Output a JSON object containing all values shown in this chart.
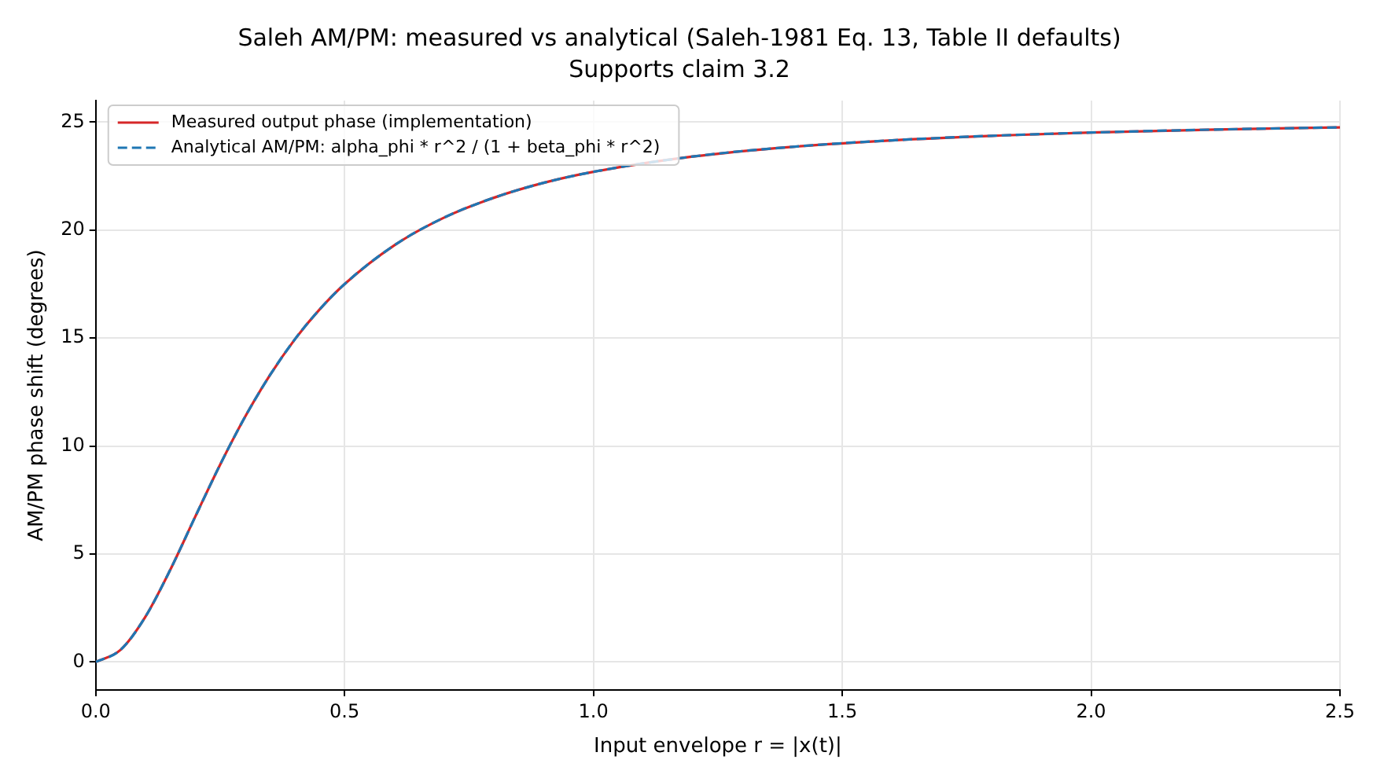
{
  "chart_data": {
    "type": "line",
    "title": "Saleh AM/PM: measured vs analytical (Saleh-1981 Eq. 13, Table II defaults)",
    "subtitle": "Supports claim 3.2",
    "xlabel": "Input envelope r = |x(t)|",
    "ylabel": "AM/PM phase shift (degrees)",
    "x": [
      0,
      0.05,
      0.1,
      0.15,
      0.2,
      0.25,
      0.3,
      0.35,
      0.4,
      0.45,
      0.5,
      0.6,
      0.7,
      0.8,
      0.9,
      1.0,
      1.2,
      1.4,
      1.6,
      1.8,
      2.0,
      2.25,
      2.5
    ],
    "series": [
      {
        "name": "Measured output phase (implementation)",
        "color": "#d62728",
        "line_style": "solid",
        "values": [
          0,
          0.56,
          2.1,
          4.28,
          6.73,
          9.14,
          11.35,
          13.28,
          14.94,
          16.33,
          17.5,
          19.3,
          20.58,
          21.5,
          22.19,
          22.7,
          23.41,
          23.86,
          24.16,
          24.37,
          24.52,
          24.66,
          24.76
        ]
      },
      {
        "name": "Analytical AM/PM: alpha_phi * r^2 / (1 + beta_phi * r^2)",
        "color": "#1f77b4",
        "line_style": "dashed",
        "values": [
          0,
          0.56,
          2.1,
          4.28,
          6.73,
          9.14,
          11.35,
          13.28,
          14.94,
          16.33,
          17.5,
          19.3,
          20.58,
          21.5,
          22.19,
          22.7,
          23.41,
          23.86,
          24.16,
          24.37,
          24.52,
          24.66,
          24.76
        ]
      }
    ],
    "xlim": [
      0,
      2.5
    ],
    "xticks": [
      {
        "value": 0,
        "label": "0.0"
      },
      0.5,
      {
        "value": 1,
        "label": "1.0"
      },
      1.5,
      {
        "value": 2,
        "label": "2.0"
      },
      2.5
    ],
    "ylim": [
      -1.3,
      26
    ],
    "yticks": [
      0,
      5,
      10,
      15,
      20,
      25
    ],
    "grid": true,
    "legend": "top left",
    "marker": "none"
  }
}
